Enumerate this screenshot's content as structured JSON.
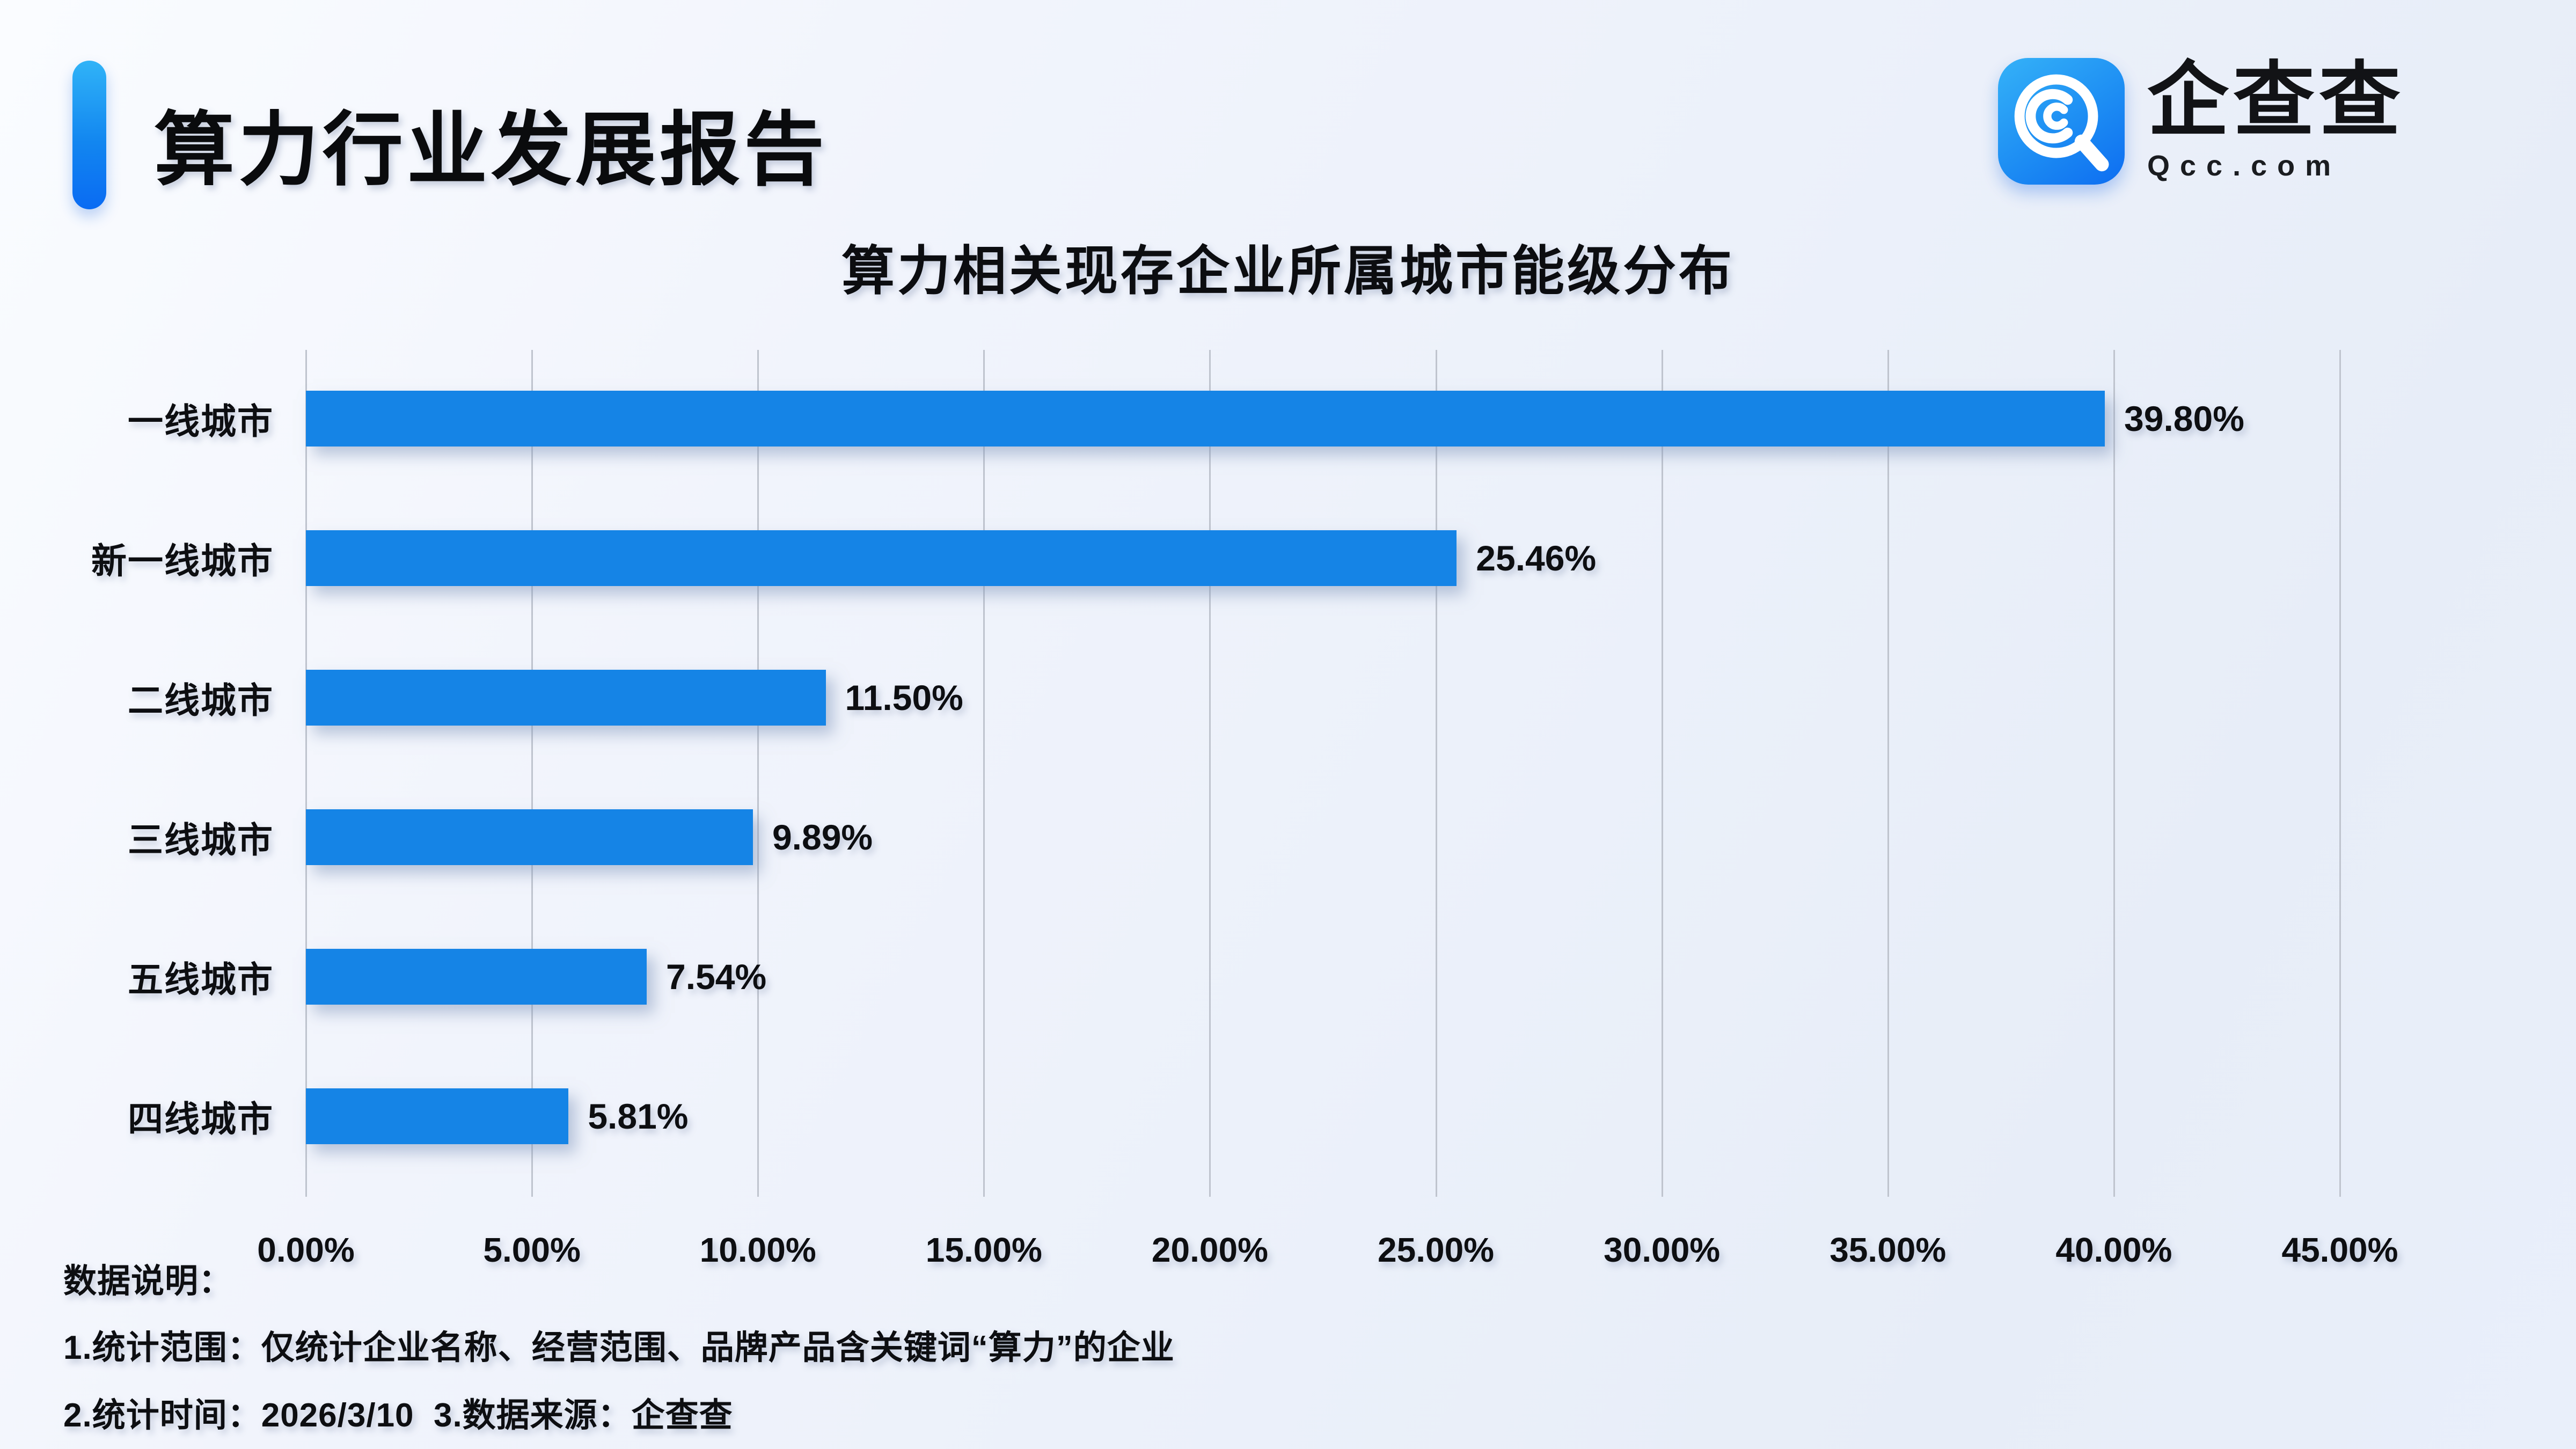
{
  "header": {
    "title": "算力行业发展报告"
  },
  "logo": {
    "name": "企查查",
    "domain": "Qcc.com",
    "icon": "qcc-logo-icon",
    "icon_color_top": "#35b2f8",
    "icon_color_bottom": "#0d6df1"
  },
  "chart_data": {
    "type": "bar",
    "orientation": "horizontal",
    "title": "算力相关现存企业所属城市能级分布",
    "categories": [
      "一线城市",
      "新一线城市",
      "二线城市",
      "三线城市",
      "五线城市",
      "四线城市"
    ],
    "values": [
      39.8,
      25.46,
      11.5,
      9.89,
      7.54,
      5.81
    ],
    "value_labels": [
      "39.80%",
      "25.46%",
      "11.50%",
      "9.89%",
      "7.54%",
      "5.81%"
    ],
    "x_ticks": [
      "0.00%",
      "5.00%",
      "10.00%",
      "15.00%",
      "20.00%",
      "25.00%",
      "30.00%",
      "35.00%",
      "40.00%",
      "45.00%"
    ],
    "xlim": [
      0,
      45
    ],
    "xlabel": "",
    "ylabel": "",
    "grid": true,
    "legend": false,
    "bar_color": "#1584e6",
    "gridline_color": "#bfc4ce"
  },
  "footer": {
    "heading": "数据说明：",
    "note1": "1.统计范围：仅统计企业名称、经营范围、品牌产品含关键词“算力”的企业",
    "note2": "2.统计时间：2026/3/10  3.数据来源：企查查"
  }
}
